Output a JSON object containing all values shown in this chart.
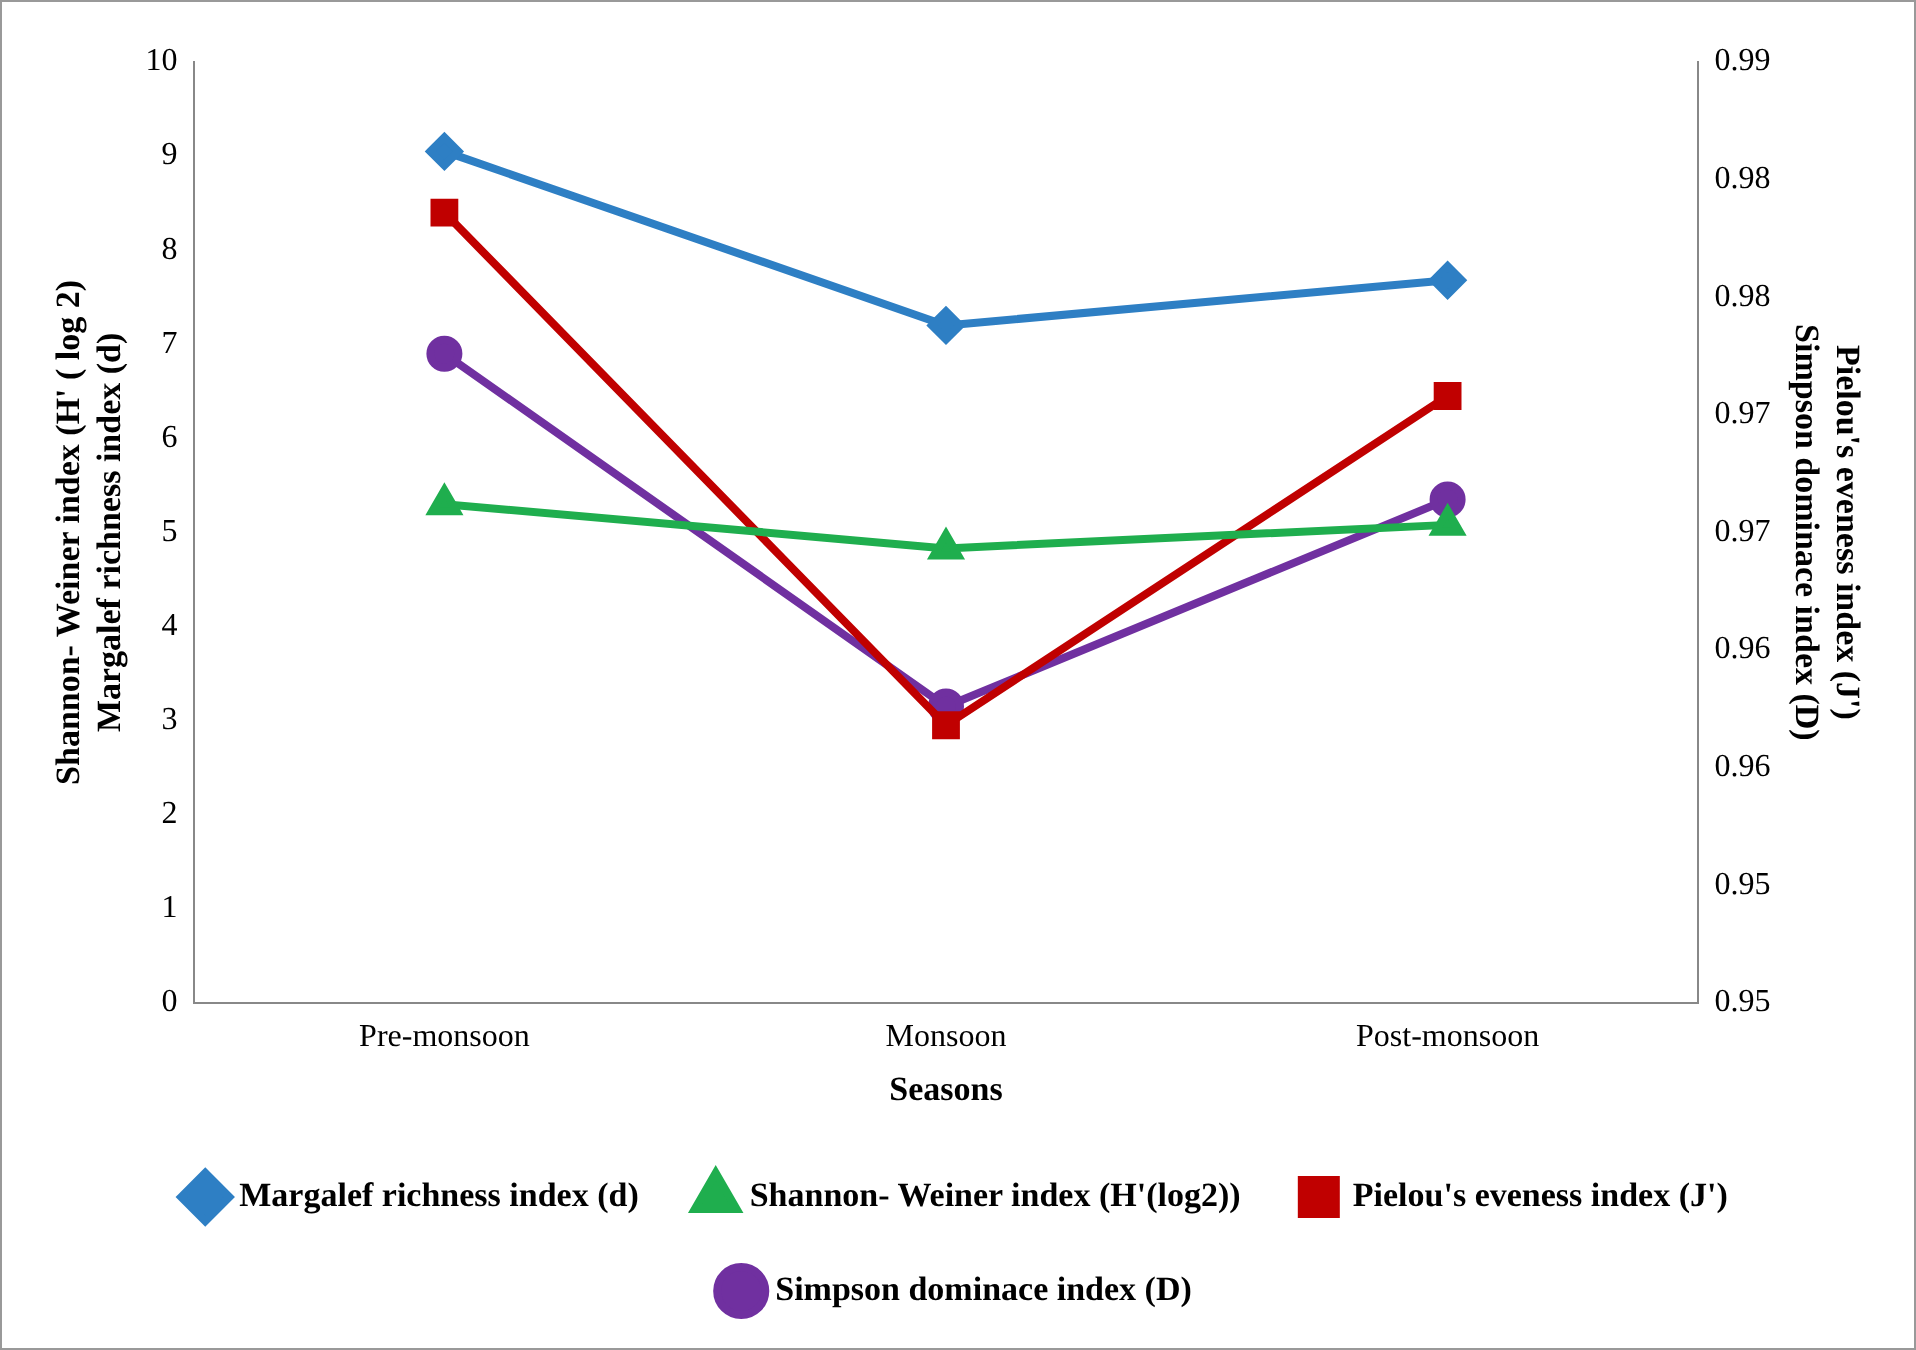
{
  "chart_data": {
    "type": "line",
    "xlabel": "Seasons",
    "ylabel": "Shannon- Weiner index (H' ( log 2)\nMargalef richness index (d)",
    "y2label": "Pielou's eveness index (J')\nSimpson dominace index (D)",
    "categories": [
      "Pre-monsoon",
      "Monsoon",
      "Post-monsoon"
    ],
    "ylim": [
      0,
      10
    ],
    "yticks": [
      0,
      1,
      2,
      3,
      4,
      5,
      6,
      7,
      8,
      9,
      10
    ],
    "y2lim": [
      0.95,
      0.99
    ],
    "y2ticks": [
      {
        "value": 0.95,
        "label": "0.95"
      },
      {
        "value": 0.955,
        "label": "0.95"
      },
      {
        "value": 0.96,
        "label": "0.96"
      },
      {
        "value": 0.965,
        "label": "0.96"
      },
      {
        "value": 0.97,
        "label": "0.97"
      },
      {
        "value": 0.975,
        "label": "0.97"
      },
      {
        "value": 0.98,
        "label": "0.98"
      },
      {
        "value": 0.985,
        "label": "0.98"
      },
      {
        "value": 0.99,
        "label": "0.99"
      }
    ],
    "grid": false,
    "legend": "bottom",
    "line_style": "solid",
    "series": [
      {
        "name": "Margalef richness index (d)",
        "color": "#2e7fc4",
        "marker": "diamond",
        "values": [
          9.05,
          7.2,
          7.68
        ]
      },
      {
        "name": "Shannon- Weiner index (H'(log2))",
        "color": "#1fae4e",
        "marker": "triangle",
        "values": [
          5.3,
          4.83,
          5.08
        ]
      },
      {
        "name": "Pielou's eveness index (J')",
        "color": "#c00000",
        "marker": "square",
        "axis": "y2",
        "values": [
          0.9836,
          0.9618,
          0.9758
        ]
      },
      {
        "name": "Simpson dominace index (D)",
        "color": "#7030a0",
        "marker": "circle",
        "axis": "y2",
        "values": [
          0.9776,
          0.9626,
          0.9714
        ]
      }
    ]
  }
}
